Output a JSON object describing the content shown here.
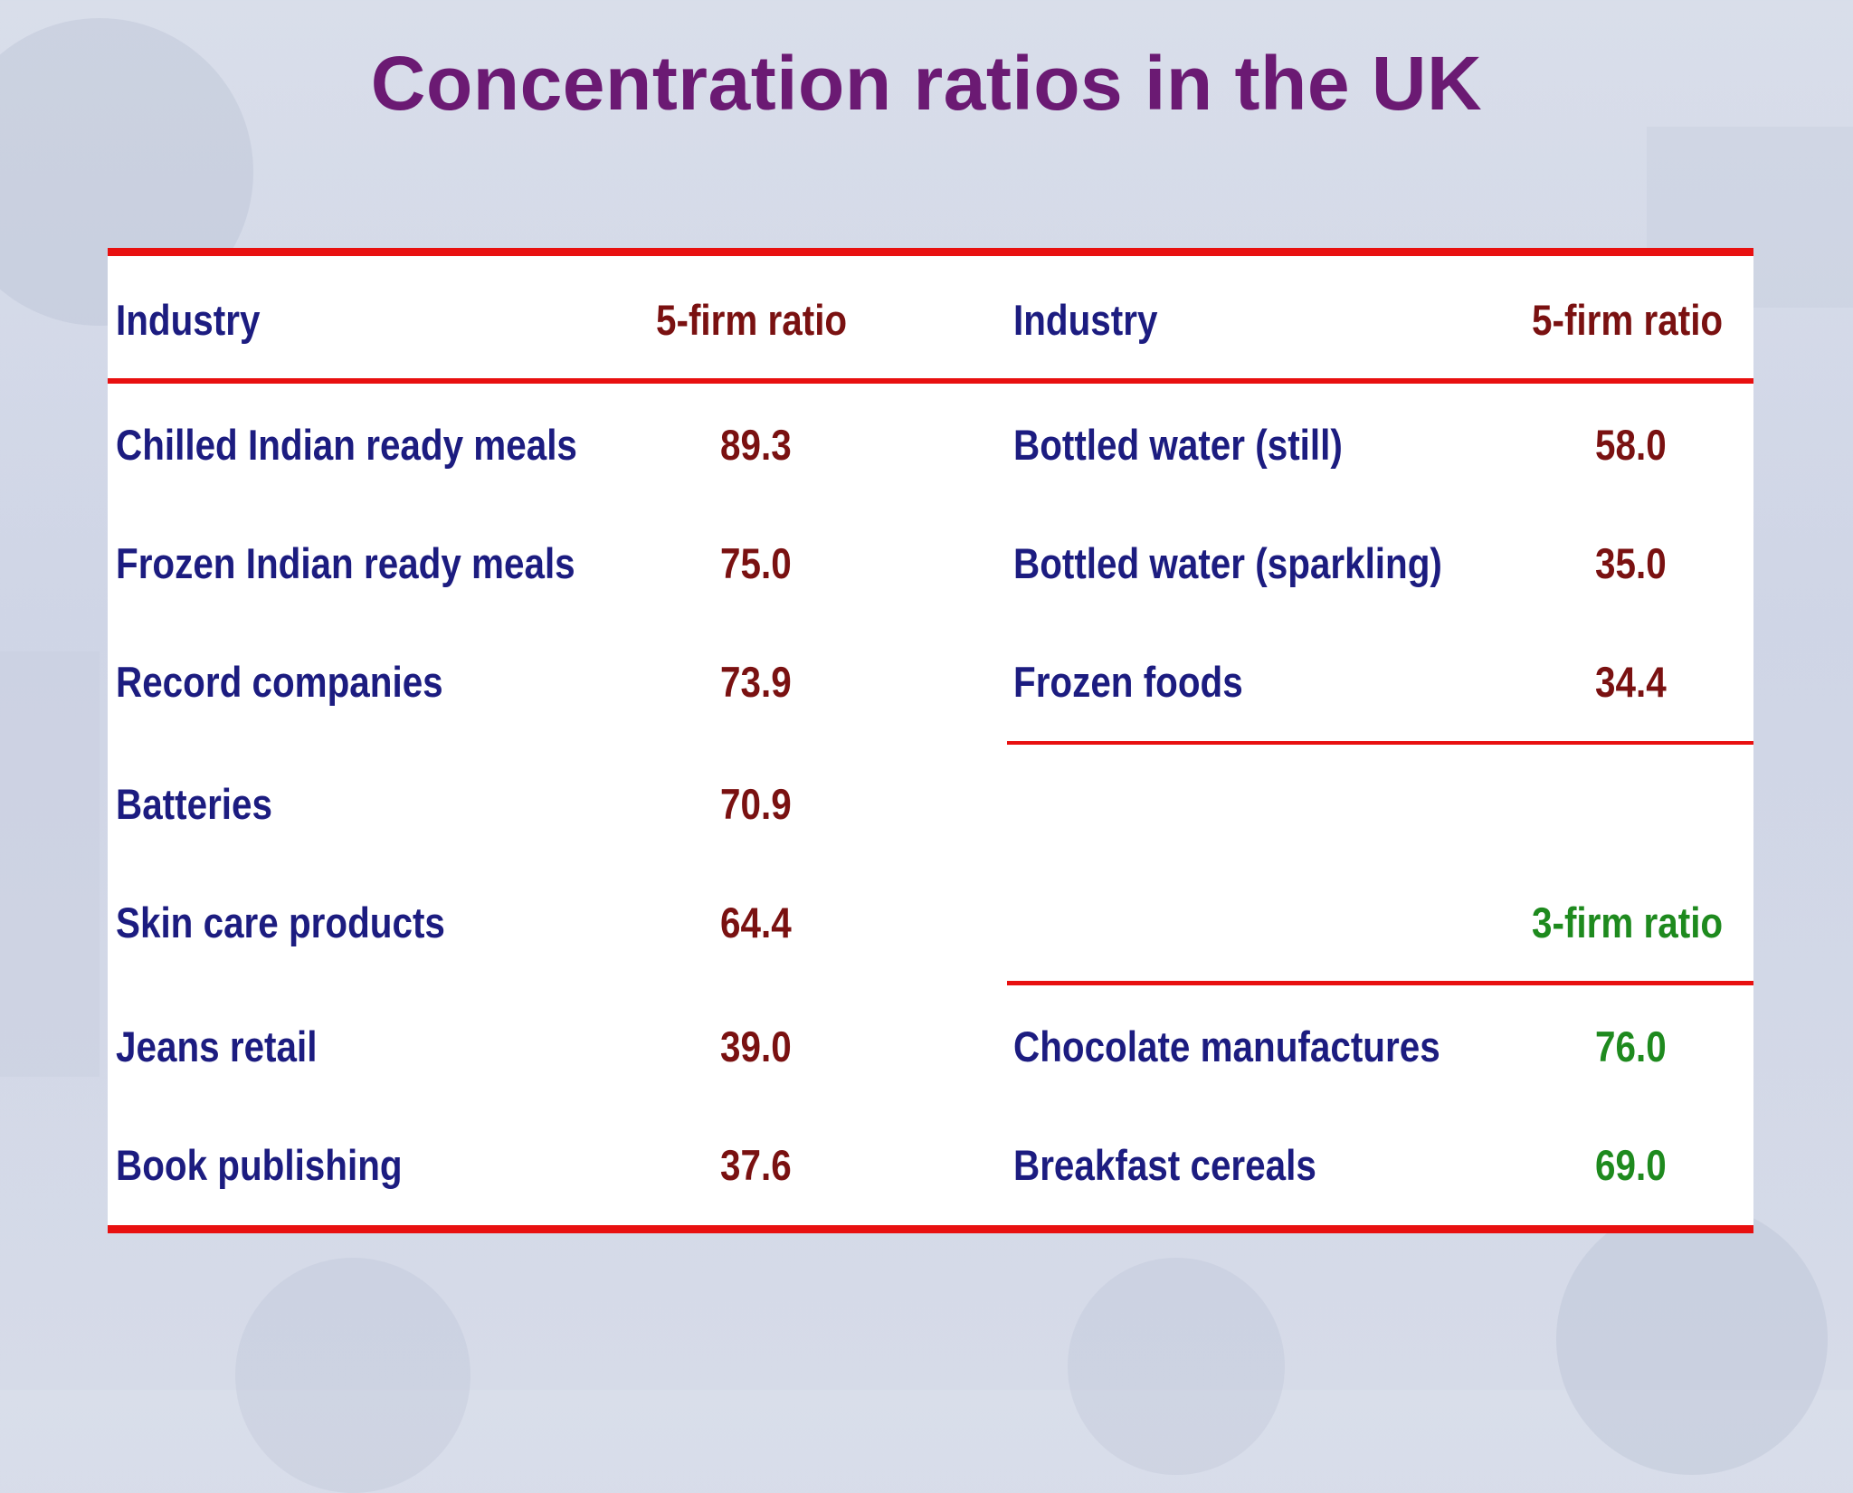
{
  "title": "Concentration ratios in the UK",
  "colors": {
    "title": "#6b1a73",
    "industry_text": "#1c1c80",
    "ratio_text": "#7a1111",
    "three_firm_text": "#1e8a1e",
    "rules": "#e81010",
    "panel": "#ffffff"
  },
  "table": {
    "left": {
      "header_industry": "Industry",
      "header_ratio": "5-firm ratio",
      "rows": [
        {
          "industry": "Chilled Indian ready meals",
          "ratio": "89.3"
        },
        {
          "industry": "Frozen Indian ready meals",
          "ratio": "75.0"
        },
        {
          "industry": "Record companies",
          "ratio": "73.9"
        },
        {
          "industry": "Batteries",
          "ratio": "70.9"
        },
        {
          "industry": "Skin care products",
          "ratio": "64.4"
        },
        {
          "industry": "Jeans retail",
          "ratio": "39.0"
        },
        {
          "industry": "Book publishing",
          "ratio": "37.6"
        }
      ]
    },
    "right": {
      "header_industry": "Industry",
      "header_ratio": "5-firm ratio",
      "rows": [
        {
          "industry": "Bottled water (still)",
          "ratio": "58.0"
        },
        {
          "industry": "Bottled water (sparkling)",
          "ratio": "35.0"
        },
        {
          "industry": "Frozen foods",
          "ratio": "34.4"
        }
      ],
      "three_firm_header": "3-firm ratio",
      "three_firm_rows": [
        {
          "industry": "Chocolate manufactures",
          "ratio": "76.0"
        },
        {
          "industry": "Breakfast cereals",
          "ratio": "69.0"
        }
      ]
    }
  }
}
